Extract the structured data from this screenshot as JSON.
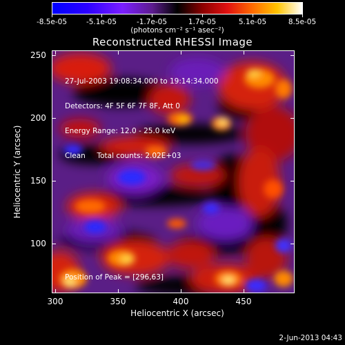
{
  "colorbar": {
    "tick_labels": [
      "-8.5e-05",
      "-5.1e-05",
      "-1.7e-05",
      "1.7e-05",
      "5.1e-05",
      "8.5e-05"
    ],
    "unit_label": "(photons cm⁻² s⁻¹ asec⁻²)"
  },
  "title": "Reconstructed RHESSI Image",
  "info": {
    "time_range": "27-Jul-2003 19:08:34.000 to 19:14:34.000",
    "detectors": "Detectors: 4F 5F 6F 7F 8F, Att 0",
    "energy": "Energy Range: 12.0 - 25.0 keV",
    "algorithm": "Clean     Total counts: 2.02E+03"
  },
  "peak_text": "Position of Peak = [296,63]",
  "axes": {
    "xlabel": "Heliocentric X (arcsec)",
    "ylabel": "Heliocentric Y (arcsec)",
    "xticks": [
      "300",
      "350",
      "400",
      "450"
    ],
    "yticks": [
      "250",
      "200",
      "150",
      "100"
    ]
  },
  "footer_date": "2-Jun-2013 04:43"
}
